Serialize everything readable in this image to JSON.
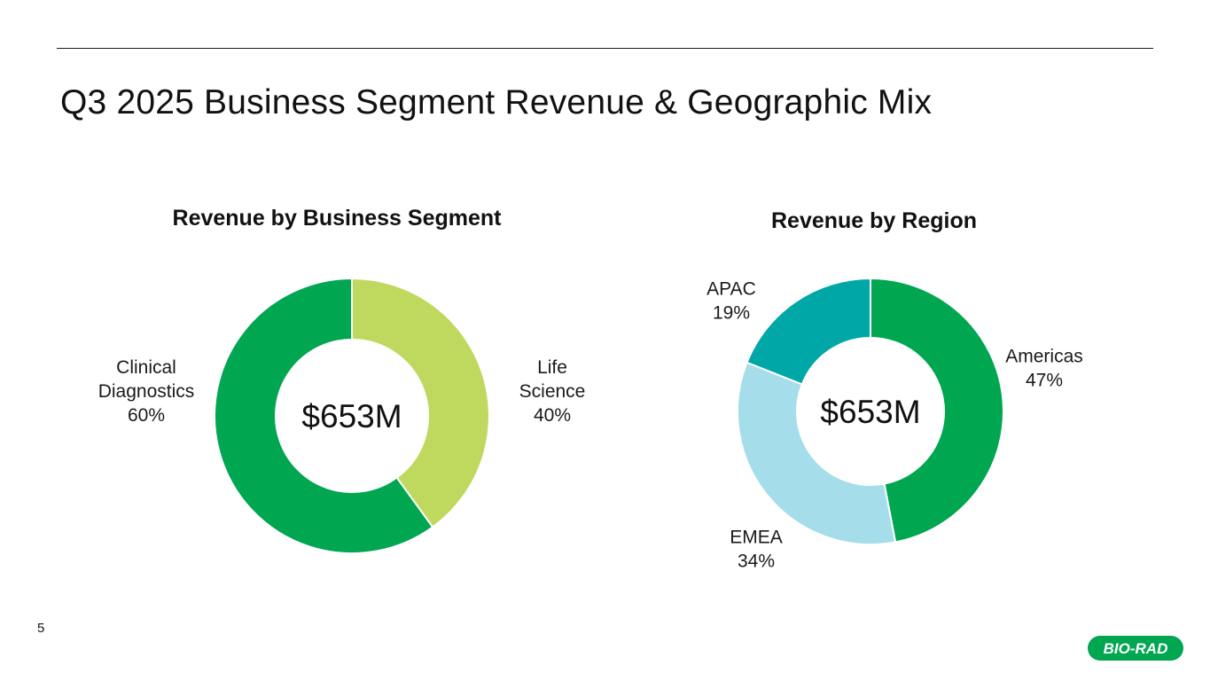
{
  "slide": {
    "title": "Q3 2025 Business Segment Revenue & Geographic Mix",
    "page_number": "5",
    "logo_text": "BIO-RAD",
    "logo_color": "#00A650"
  },
  "chart_data": [
    {
      "type": "pie",
      "donut": true,
      "title": "Revenue by Business Segment",
      "center_label": "$653M",
      "slices": [
        {
          "name": "Life Science",
          "label_lines": [
            "Life",
            "Science"
          ],
          "value": 40,
          "value_label": "40%",
          "color": "#BFD95F"
        },
        {
          "name": "Clinical Diagnostics",
          "label_lines": [
            "Clinical",
            "Diagnostics"
          ],
          "value": 60,
          "value_label": "60%",
          "color": "#00A650"
        }
      ]
    },
    {
      "type": "pie",
      "donut": true,
      "title": "Revenue by Region",
      "center_label": "$653M",
      "slices": [
        {
          "name": "Americas",
          "label_lines": [
            "Americas"
          ],
          "value": 47,
          "value_label": "47%",
          "color": "#00A650"
        },
        {
          "name": "EMEA",
          "label_lines": [
            "EMEA"
          ],
          "value": 34,
          "value_label": "34%",
          "color": "#A6DDEA"
        },
        {
          "name": "APAC",
          "label_lines": [
            "APAC"
          ],
          "value": 19,
          "value_label": "19%",
          "color": "#00A7A7"
        }
      ]
    }
  ]
}
